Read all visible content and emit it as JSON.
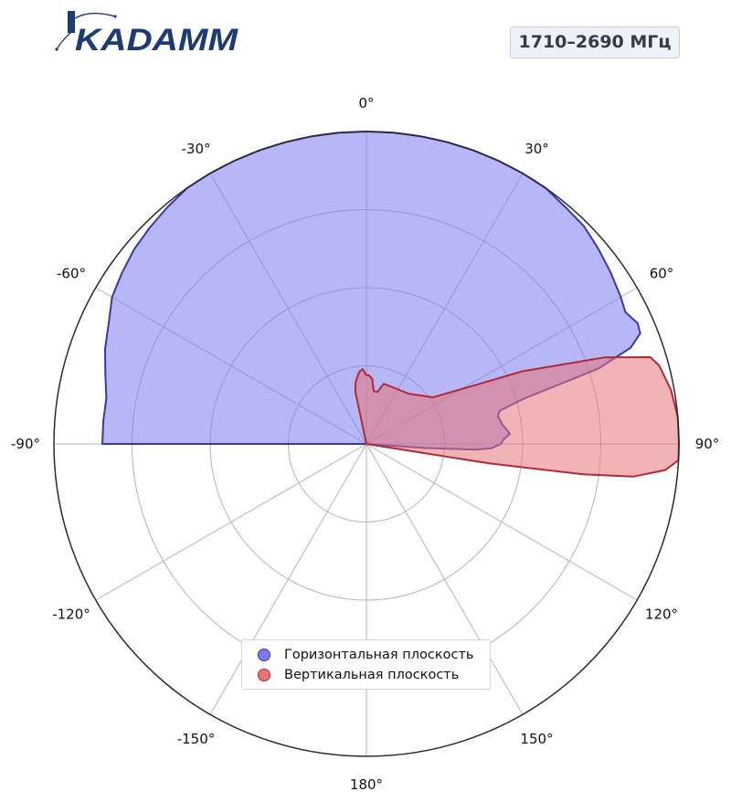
{
  "logo": {
    "text": "KADAMM",
    "color": "#1c3c78",
    "accent": "#24376a"
  },
  "frequency_badge": "1710–2690 МГц",
  "chart_data": {
    "type": "polar-area",
    "angle_unit": "degrees",
    "angle_zero": "top",
    "angle_direction": "clockwise",
    "theta_tick_labels": [
      "0°",
      "30°",
      "60°",
      "90°",
      "120°",
      "150°",
      "180°",
      "-150°",
      "-120°",
      "-90°",
      "-60°",
      "-30°"
    ],
    "theta_ticks": [
      0,
      30,
      60,
      90,
      120,
      150,
      180,
      -150,
      -120,
      -90,
      -60,
      -30
    ],
    "r_range": [
      0,
      1
    ],
    "r_gridlines": [
      0.25,
      0.5,
      0.75
    ],
    "grid": true,
    "legend": "bottom-center",
    "series": [
      {
        "name": "Горизонтальная плоскость",
        "fill": "#7b7bf0",
        "stroke": "#3a38a8",
        "points": [
          [
            -90,
            0
          ],
          [
            -90,
            0.845
          ],
          [
            -85,
            0.845
          ],
          [
            -80,
            0.845
          ],
          [
            -75,
            0.865
          ],
          [
            -70,
            0.89
          ],
          [
            -65,
            0.91
          ],
          [
            -60,
            0.94
          ],
          [
            -55,
            0.955
          ],
          [
            -50,
            0.97
          ],
          [
            -45,
            0.98
          ],
          [
            -40,
            0.99
          ],
          [
            -35,
            1.0
          ],
          [
            -30,
            1.0
          ],
          [
            -25,
            1.0
          ],
          [
            -20,
            1.0
          ],
          [
            -15,
            1.0
          ],
          [
            -10,
            1.0
          ],
          [
            -5,
            1.0
          ],
          [
            0,
            1.0
          ],
          [
            5,
            1.0
          ],
          [
            10,
            1.0
          ],
          [
            15,
            1.0
          ],
          [
            20,
            1.0
          ],
          [
            25,
            1.0
          ],
          [
            30,
            1.0
          ],
          [
            35,
            1.0
          ],
          [
            40,
            0.99
          ],
          [
            45,
            0.985
          ],
          [
            50,
            0.97
          ],
          [
            55,
            0.955
          ],
          [
            60,
            0.94
          ],
          [
            63,
            0.93
          ],
          [
            66,
            0.95
          ],
          [
            68,
            0.945
          ],
          [
            70,
            0.9
          ],
          [
            72,
            0.78
          ],
          [
            74,
            0.52
          ],
          [
            76,
            0.44
          ],
          [
            78,
            0.43
          ],
          [
            80,
            0.435
          ],
          [
            82,
            0.44
          ],
          [
            84,
            0.45
          ],
          [
            86,
            0.46
          ],
          [
            88,
            0.44
          ],
          [
            90,
            0.43
          ],
          [
            92,
            0.4
          ],
          [
            93,
            0.35
          ],
          [
            94,
            0.19
          ],
          [
            95,
            0
          ]
        ]
      },
      {
        "name": "Вертикальная плоскость",
        "fill": "#e8747a",
        "stroke": "#b22a32",
        "points": [
          [
            -12,
            0
          ],
          [
            -12,
            0.17
          ],
          [
            -10,
            0.2
          ],
          [
            -6,
            0.23
          ],
          [
            -3,
            0.24
          ],
          [
            0,
            0.22
          ],
          [
            2,
            0.22
          ],
          [
            5,
            0.21
          ],
          [
            8,
            0.17
          ],
          [
            12,
            0.17
          ],
          [
            16,
            0.2
          ],
          [
            25,
            0.2
          ],
          [
            40,
            0.21
          ],
          [
            55,
            0.26
          ],
          [
            60,
            0.35
          ],
          [
            65,
            0.55
          ],
          [
            70,
            0.81
          ],
          [
            73,
            0.95
          ],
          [
            75,
            0.97
          ],
          [
            80,
            0.99
          ],
          [
            85,
            1.0
          ],
          [
            90,
            1.0
          ],
          [
            93,
            1.0
          ],
          [
            95,
            0.96
          ],
          [
            97,
            0.86
          ],
          [
            98,
            0.7
          ],
          [
            99,
            0.4
          ],
          [
            99,
            0
          ]
        ]
      }
    ]
  }
}
